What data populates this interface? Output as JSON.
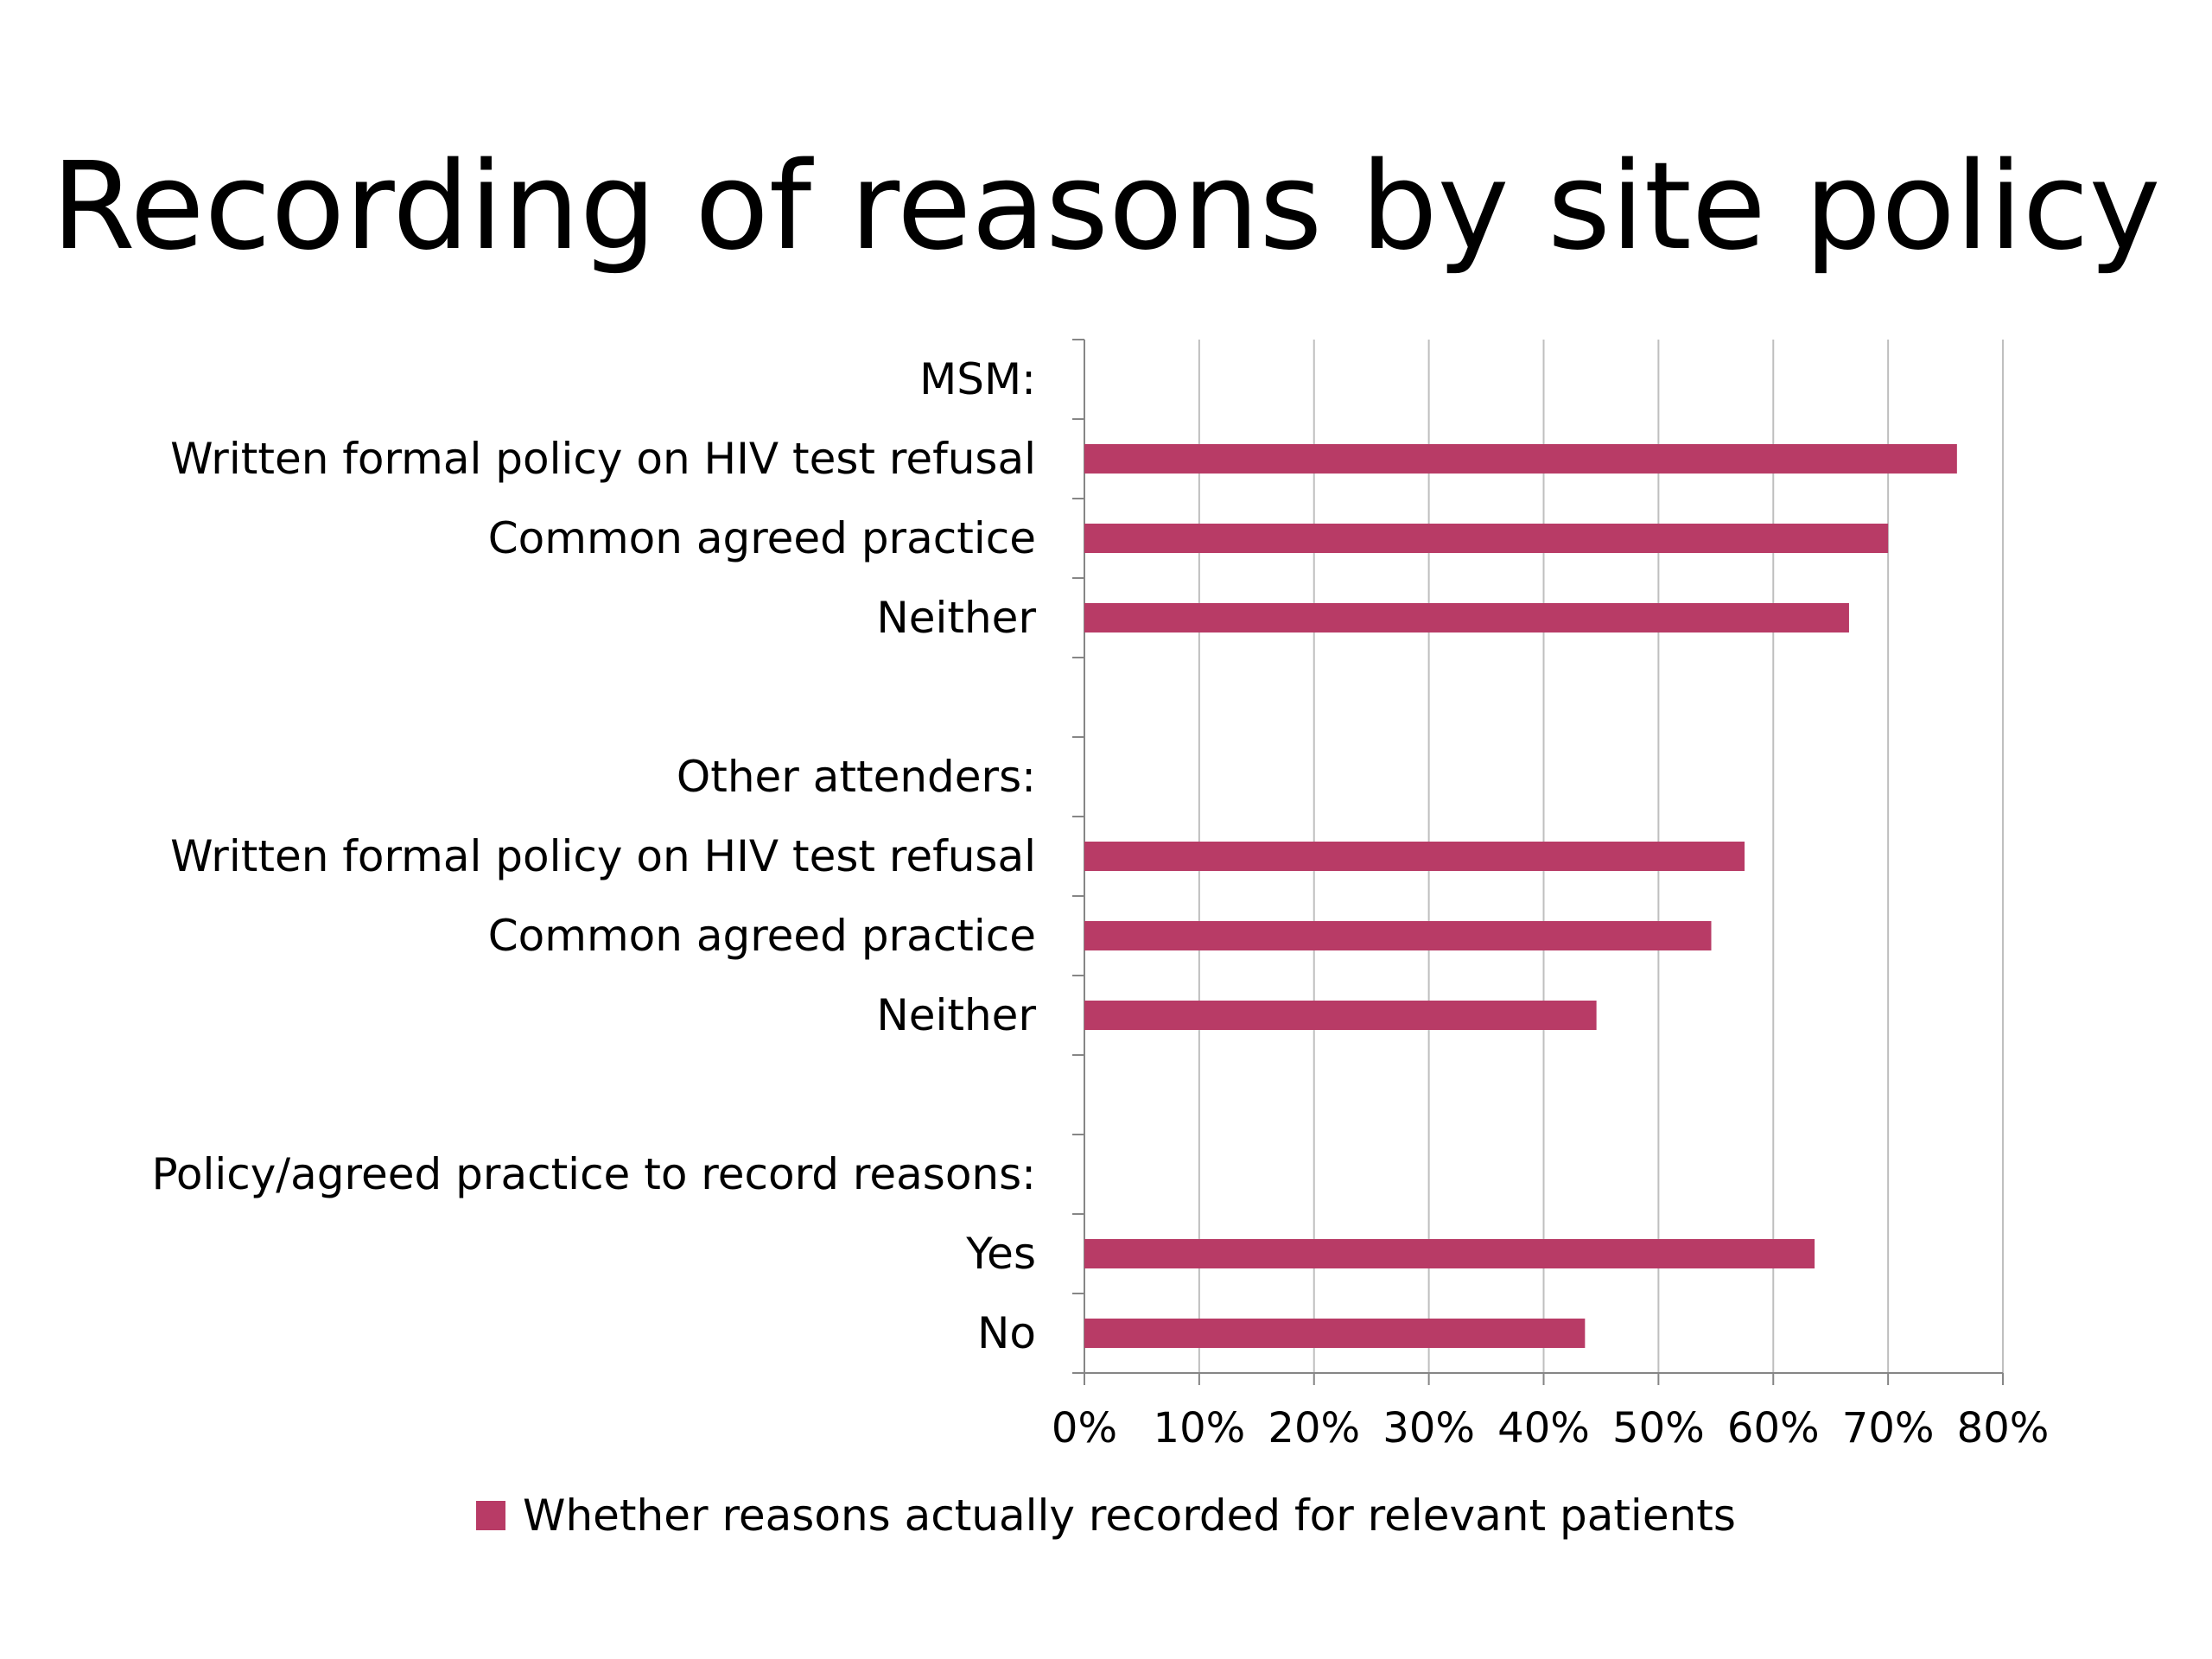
{
  "slide": {
    "title": "Recording of reasons by site policy"
  },
  "colors": {
    "bar": "#B83B66",
    "grid": "#BFBFBF",
    "axis": "#868686",
    "text": "#000000"
  },
  "chart_data": {
    "type": "bar",
    "orientation": "horizontal",
    "categories": [
      "MSM:",
      "Written formal policy on HIV test refusal",
      "Common agreed practice",
      "Neither",
      "",
      "Other attenders:",
      "Written formal policy on HIV test refusal",
      "Common agreed practice",
      "Neither",
      "",
      "Policy/agreed practice to record reasons:",
      "Yes",
      "No"
    ],
    "series": [
      {
        "name": "Whether reasons actually recorded for relevant patients",
        "values": [
          null,
          0.76,
          0.7,
          0.666,
          null,
          null,
          0.575,
          0.546,
          0.446,
          null,
          null,
          0.636,
          0.436
        ]
      }
    ],
    "xlim": [
      0,
      0.8
    ],
    "xticks": [
      0,
      0.1,
      0.2,
      0.3,
      0.4,
      0.5,
      0.6,
      0.7,
      0.8
    ],
    "xtick_labels": [
      "0%",
      "10%",
      "20%",
      "30%",
      "40%",
      "50%",
      "60%",
      "70%",
      "80%"
    ],
    "grid": true,
    "legend_position": "bottom"
  }
}
